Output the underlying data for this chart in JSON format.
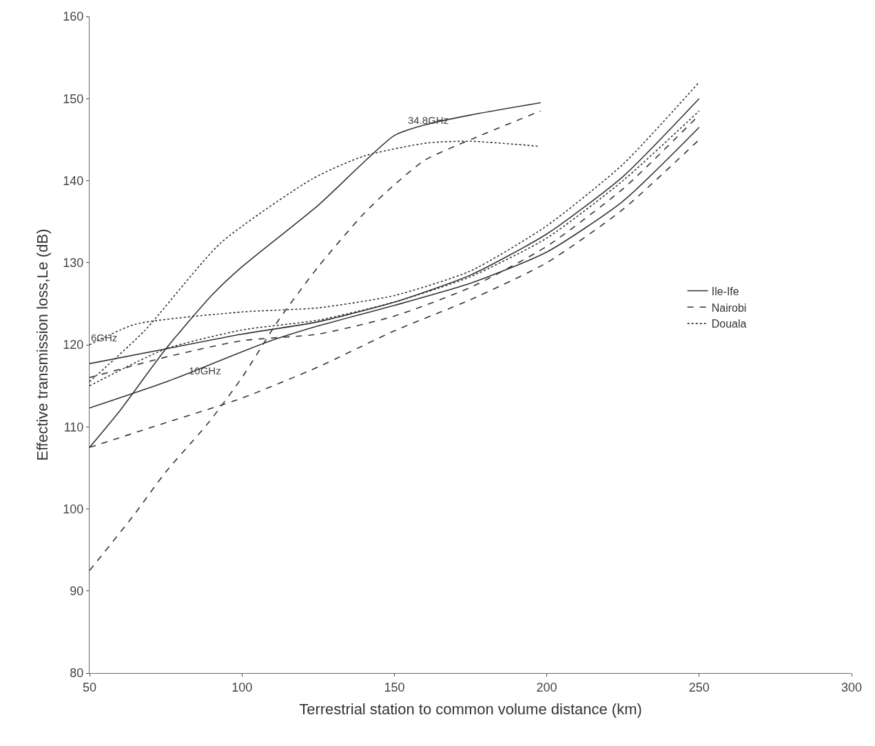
{
  "chart_data": {
    "type": "line",
    "xlabel": "Terrestrial station to common volume distance (km)",
    "ylabel": "Effective transmission loss,Le (dB)",
    "xlim": [
      50,
      300
    ],
    "xticks": [
      50,
      100,
      150,
      200,
      250,
      300
    ],
    "ylim": [
      80,
      160
    ],
    "yticks": [
      80,
      90,
      100,
      110,
      120,
      130,
      140,
      150,
      160
    ],
    "legend": "right",
    "marker": "none",
    "series": [
      {
        "name": "Ile-Ife",
        "color": "#333333",
        "line_style": "solid",
        "x": [
          50,
          60,
          75,
          90,
          100,
          125,
          150,
          160,
          175,
          198
        ],
        "values": [
          107.5,
          112,
          119.5,
          126,
          129.5,
          137,
          145.5,
          146.8,
          148,
          149.5
        ]
      },
      {
        "name": "Nairobi",
        "color": "#333333",
        "line_style": "dashed",
        "x": [
          50,
          64,
          75,
          89,
          100,
          112,
          125,
          140,
          150,
          160,
          175,
          198
        ],
        "values": [
          92.5,
          99,
          104.5,
          110.5,
          116,
          123,
          129.5,
          136,
          139.5,
          142.5,
          145,
          148.5
        ]
      },
      {
        "name": "Douala",
        "color": "#333333",
        "line_style": "dotted",
        "x": [
          50,
          68,
          93,
          123,
          140,
          161,
          175,
          197
        ],
        "values": [
          115.5,
          121.7,
          132.4,
          140.2,
          143,
          144.6,
          144.8,
          144.2
        ]
      },
      {
        "color": "#333333",
        "line_style": "solid",
        "x": [
          50,
          75,
          100,
          125,
          150,
          175,
          200,
          225,
          250
        ],
        "values": [
          117.7,
          119.5,
          121.3,
          122.8,
          125.2,
          128.5,
          133.5,
          140.5,
          150
        ]
      },
      {
        "color": "#333333",
        "line_style": "solid",
        "x": [
          50,
          76,
          108,
          125,
          150,
          175,
          200,
          225,
          250
        ],
        "values": [
          112.3,
          115.6,
          120.3,
          122.3,
          124.8,
          127.5,
          131.3,
          137.5,
          146.5
        ]
      },
      {
        "color": "#333333",
        "line_style": "dashed",
        "x": [
          50,
          75,
          100,
          125,
          150,
          175,
          200,
          225,
          250
        ],
        "values": [
          116,
          118.5,
          120.5,
          121.3,
          123.5,
          127,
          132,
          139,
          148
        ]
      },
      {
        "color": "#333333",
        "line_style": "dashed",
        "x": [
          50,
          75,
          100,
          125,
          150,
          175,
          200,
          225,
          250
        ],
        "values": [
          107.5,
          110.5,
          113.5,
          117.3,
          121.7,
          125.5,
          130,
          136.5,
          145
        ]
      },
      {
        "color": "#333333",
        "line_style": "dotted",
        "x": [
          50,
          65,
          100,
          125,
          150,
          175,
          200,
          225,
          250
        ],
        "values": [
          120,
          122.5,
          124,
          124.5,
          126,
          129,
          134.5,
          142,
          152
        ]
      },
      {
        "color": "#333333",
        "line_style": "dotted",
        "x": [
          50,
          75,
          100,
          125,
          150,
          175,
          200,
          225,
          250
        ],
        "values": [
          115,
          119.5,
          121.8,
          123,
          125.2,
          128.3,
          133,
          140,
          148.5
        ]
      }
    ],
    "annotations": [
      {
        "text": "34.8GHz",
        "x": 154,
        "y": 146.5
      },
      {
        "text": "6GHz",
        "x": 50,
        "y": 120
      },
      {
        "text": "10GHz",
        "x": 82,
        "y": 116
      }
    ]
  }
}
